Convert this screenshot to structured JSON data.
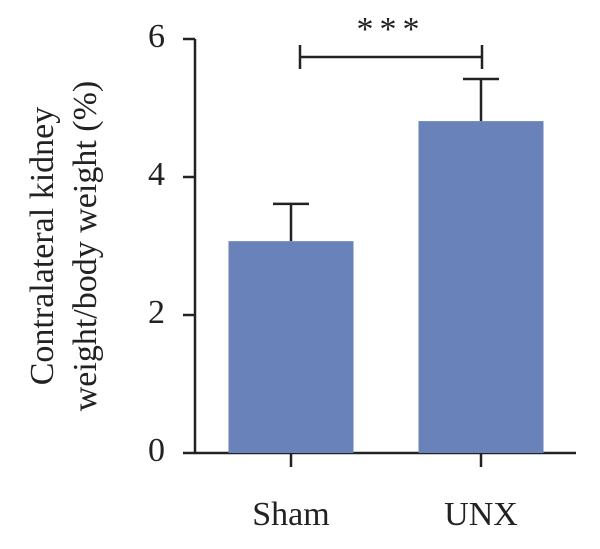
{
  "chart_data": {
    "type": "bar",
    "y_label": [
      "Contralateral kidney",
      "weight/body weight (%)"
    ],
    "categories": [
      "Sham",
      "UNX"
    ],
    "values": [
      3.07,
      4.81
    ],
    "errors": [
      0.54,
      0.61
    ],
    "color": "#6a82ba",
    "ylim": [
      0,
      6
    ],
    "yticks": [
      0,
      2,
      4,
      6
    ],
    "annotation": "***"
  }
}
